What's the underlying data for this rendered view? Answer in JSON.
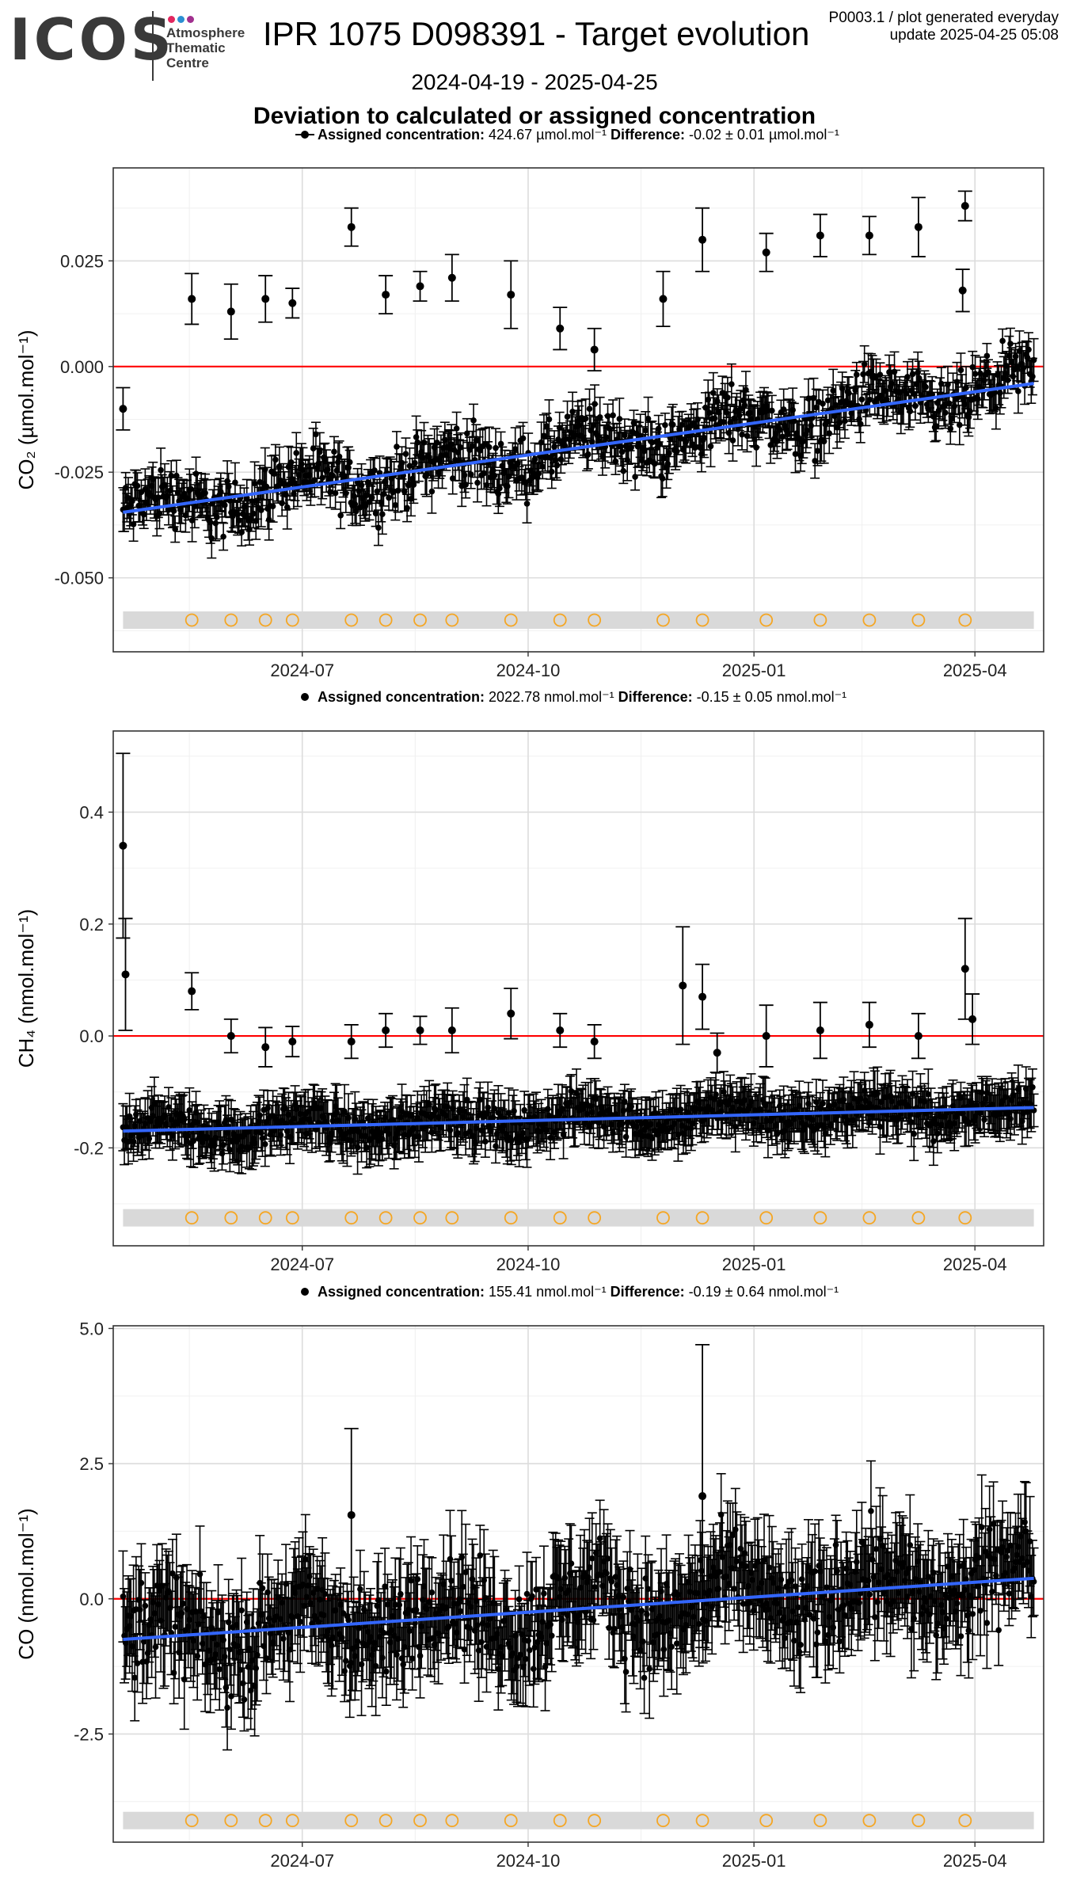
{
  "header": {
    "logo_text": "ICOS",
    "logo_subtitle": "Atmosphere\nThematic\nCentre",
    "title": "IPR 1075 D098391 - Target evolution",
    "corner_line1": "P0003.1 / plot generated everyday",
    "corner_line2": "update  2025-04-25 05:08",
    "date_range": "2024-04-19 - 2025-04-25",
    "chart_title": "Deviation to calculated or assigned concentration",
    "logo_dot_colors": [
      "#e2275f",
      "#2b8fd2",
      "#a1308f"
    ]
  },
  "colors": {
    "points": "#000000",
    "reference_line": "#ff0000",
    "trend_line": "#3366ff",
    "calibration_marker": "#f5a623",
    "calibration_band": "#d9d9d9",
    "grid_major": "#dcdcdc",
    "grid_minor": "#f0f0f0"
  },
  "chart_data": [
    {
      "type": "scatter",
      "ylabel": "CO₂ (µmol.mol⁻¹)",
      "legend": {
        "assigned_label": "Assigned concentration:",
        "assigned_value": "424.67 µmol.mol⁻¹",
        "difference_label": "Difference:",
        "difference_value": "-0.02 ± 0.01 µmol.mol⁻¹"
      },
      "x_tick_labels": [
        "2024-07",
        "2024-10",
        "2025-01",
        "2025-04"
      ],
      "x_ticks": [
        "2024-07-01",
        "2024-10-01",
        "2025-01-01",
        "2025-04-01"
      ],
      "xlim": [
        "2024-04-15",
        "2025-04-29"
      ],
      "y_tick_labels": [
        "0.025",
        "0.000",
        "-0.025",
        "-0.050"
      ],
      "y_ticks": [
        0.025,
        0.0,
        -0.025,
        -0.05
      ],
      "ylim": [
        -0.0675,
        0.047
      ],
      "reference_y": 0.0,
      "trend": {
        "start": [
          "2024-04-19",
          -0.0345
        ],
        "end": [
          "2025-04-25",
          -0.004
        ]
      },
      "bulk": {
        "start": "2024-04-19",
        "end": "2025-04-25",
        "trend_start": -0.0345,
        "trend_end": -0.004,
        "spread": 0.006,
        "err": 0.004
      },
      "calibration_band_y": -0.06,
      "outliers": [
        {
          "x": "2024-04-19",
          "y": -0.01,
          "err": 0.005
        },
        {
          "x": "2024-05-17",
          "y": 0.016,
          "err": 0.006
        },
        {
          "x": "2024-06-02",
          "y": 0.013,
          "err": 0.0065
        },
        {
          "x": "2024-06-16",
          "y": 0.016,
          "err": 0.0055
        },
        {
          "x": "2024-06-27",
          "y": 0.015,
          "err": 0.0035
        },
        {
          "x": "2024-07-21",
          "y": 0.033,
          "err": 0.0045
        },
        {
          "x": "2024-08-04",
          "y": 0.017,
          "err": 0.0045
        },
        {
          "x": "2024-08-18",
          "y": 0.019,
          "err": 0.0035
        },
        {
          "x": "2024-08-31",
          "y": 0.021,
          "err": 0.0055
        },
        {
          "x": "2024-09-24",
          "y": 0.017,
          "err": 0.008
        },
        {
          "x": "2024-10-14",
          "y": 0.009,
          "err": 0.005
        },
        {
          "x": "2024-10-28",
          "y": 0.004,
          "err": 0.005
        },
        {
          "x": "2024-11-25",
          "y": 0.016,
          "err": 0.0065
        },
        {
          "x": "2024-12-11",
          "y": 0.03,
          "err": 0.0075
        },
        {
          "x": "2025-01-06",
          "y": 0.027,
          "err": 0.0045
        },
        {
          "x": "2025-01-28",
          "y": 0.031,
          "err": 0.005
        },
        {
          "x": "2025-02-17",
          "y": 0.031,
          "err": 0.0045
        },
        {
          "x": "2025-03-09",
          "y": 0.033,
          "err": 0.007
        },
        {
          "x": "2025-03-28",
          "y": 0.038,
          "err": 0.0035
        },
        {
          "x": "2025-03-27",
          "y": 0.018,
          "err": 0.005
        }
      ],
      "calibration_dates": [
        "2024-05-17",
        "2024-06-02",
        "2024-06-16",
        "2024-06-27",
        "2024-07-21",
        "2024-08-04",
        "2024-08-18",
        "2024-08-31",
        "2024-09-24",
        "2024-10-14",
        "2024-10-28",
        "2024-11-25",
        "2024-12-11",
        "2025-01-06",
        "2025-01-28",
        "2025-02-17",
        "2025-03-09",
        "2025-03-28"
      ]
    },
    {
      "type": "scatter",
      "ylabel": "CH₄ (nmol.mol⁻¹)",
      "legend": {
        "assigned_label": "Assigned concentration:",
        "assigned_value": "2022.78 nmol.mol⁻¹",
        "difference_label": "Difference:",
        "difference_value": "-0.15 ± 0.05 nmol.mol⁻¹"
      },
      "x_tick_labels": [
        "2024-07",
        "2024-10",
        "2025-01",
        "2025-04"
      ],
      "x_ticks": [
        "2024-07-01",
        "2024-10-01",
        "2025-01-01",
        "2025-04-01"
      ],
      "xlim": [
        "2024-04-15",
        "2025-04-29"
      ],
      "y_tick_labels": [
        "0.4",
        "0.2",
        "0.0",
        "-0.2"
      ],
      "y_ticks": [
        0.4,
        0.2,
        0.0,
        -0.2
      ],
      "ylim": [
        -0.375,
        0.545
      ],
      "reference_y": 0.0,
      "trend": {
        "start": [
          "2024-04-19",
          -0.17
        ],
        "end": [
          "2025-04-25",
          -0.128
        ]
      },
      "bulk": {
        "start": "2024-04-19",
        "end": "2025-04-25",
        "trend_start": -0.17,
        "trend_end": -0.128,
        "spread": 0.028,
        "err": 0.038
      },
      "calibration_band_y": -0.325,
      "outliers": [
        {
          "x": "2024-04-19",
          "y": 0.34,
          "err": 0.165
        },
        {
          "x": "2024-04-20",
          "y": 0.11,
          "err": 0.1
        },
        {
          "x": "2024-05-17",
          "y": 0.08,
          "err": 0.033
        },
        {
          "x": "2024-06-02",
          "y": 0.0,
          "err": 0.03
        },
        {
          "x": "2024-06-16",
          "y": -0.02,
          "err": 0.035
        },
        {
          "x": "2024-06-27",
          "y": -0.01,
          "err": 0.027
        },
        {
          "x": "2024-07-21",
          "y": -0.01,
          "err": 0.03
        },
        {
          "x": "2024-08-04",
          "y": 0.01,
          "err": 0.03
        },
        {
          "x": "2024-08-18",
          "y": 0.01,
          "err": 0.025
        },
        {
          "x": "2024-08-31",
          "y": 0.01,
          "err": 0.04
        },
        {
          "x": "2024-09-24",
          "y": 0.04,
          "err": 0.045
        },
        {
          "x": "2024-10-14",
          "y": 0.01,
          "err": 0.03
        },
        {
          "x": "2024-10-28",
          "y": -0.01,
          "err": 0.03
        },
        {
          "x": "2024-12-03",
          "y": 0.09,
          "err": 0.105
        },
        {
          "x": "2024-12-11",
          "y": 0.07,
          "err": 0.058
        },
        {
          "x": "2024-12-17",
          "y": -0.03,
          "err": 0.035
        },
        {
          "x": "2025-01-06",
          "y": 0.0,
          "err": 0.055
        },
        {
          "x": "2025-01-28",
          "y": 0.01,
          "err": 0.05
        },
        {
          "x": "2025-02-17",
          "y": 0.02,
          "err": 0.04
        },
        {
          "x": "2025-03-09",
          "y": 0.0,
          "err": 0.04
        },
        {
          "x": "2025-03-28",
          "y": 0.12,
          "err": 0.09
        },
        {
          "x": "2025-03-31",
          "y": 0.03,
          "err": 0.045
        }
      ],
      "calibration_dates": [
        "2024-05-17",
        "2024-06-02",
        "2024-06-16",
        "2024-06-27",
        "2024-07-21",
        "2024-08-04",
        "2024-08-18",
        "2024-08-31",
        "2024-09-24",
        "2024-10-14",
        "2024-10-28",
        "2024-11-25",
        "2024-12-11",
        "2025-01-06",
        "2025-01-28",
        "2025-02-17",
        "2025-03-09",
        "2025-03-28"
      ]
    },
    {
      "type": "scatter",
      "ylabel": "CO (nmol.mol⁻¹)",
      "legend": {
        "assigned_label": "Assigned concentration:",
        "assigned_value": "155.41 nmol.mol⁻¹",
        "difference_label": "Difference:",
        "difference_value": "-0.19 ± 0.64 nmol.mol⁻¹"
      },
      "x_tick_labels": [
        "2024-07",
        "2024-10",
        "2025-01",
        "2025-04"
      ],
      "x_ticks": [
        "2024-07-01",
        "2024-10-01",
        "2025-01-01",
        "2025-04-01"
      ],
      "xlim": [
        "2024-04-15",
        "2025-04-29"
      ],
      "y_tick_labels": [
        "5.0",
        "2.5",
        "0.0",
        "-2.5"
      ],
      "y_ticks": [
        5.0,
        2.5,
        0.0,
        -2.5
      ],
      "ylim": [
        -4.5,
        5.05
      ],
      "reference_y": 0.0,
      "trend": {
        "start": [
          "2024-04-19",
          -0.75
        ],
        "end": [
          "2025-04-25",
          0.38
        ]
      },
      "bulk": {
        "start": "2024-04-19",
        "end": "2025-04-25",
        "trend_start": -0.75,
        "trend_end": 0.38,
        "spread": 0.75,
        "err": 0.75
      },
      "calibration_band_y": -4.1,
      "outliers": [
        {
          "x": "2024-07-21",
          "y": 1.55,
          "err": 1.6
        },
        {
          "x": "2024-12-11",
          "y": 1.9,
          "err": 2.8
        }
      ],
      "calibration_dates": [
        "2024-05-17",
        "2024-06-02",
        "2024-06-16",
        "2024-06-27",
        "2024-07-21",
        "2024-08-04",
        "2024-08-18",
        "2024-08-31",
        "2024-09-24",
        "2024-10-14",
        "2024-10-28",
        "2024-11-25",
        "2024-12-11",
        "2025-01-06",
        "2025-01-28",
        "2025-02-17",
        "2025-03-09",
        "2025-03-28"
      ]
    }
  ]
}
